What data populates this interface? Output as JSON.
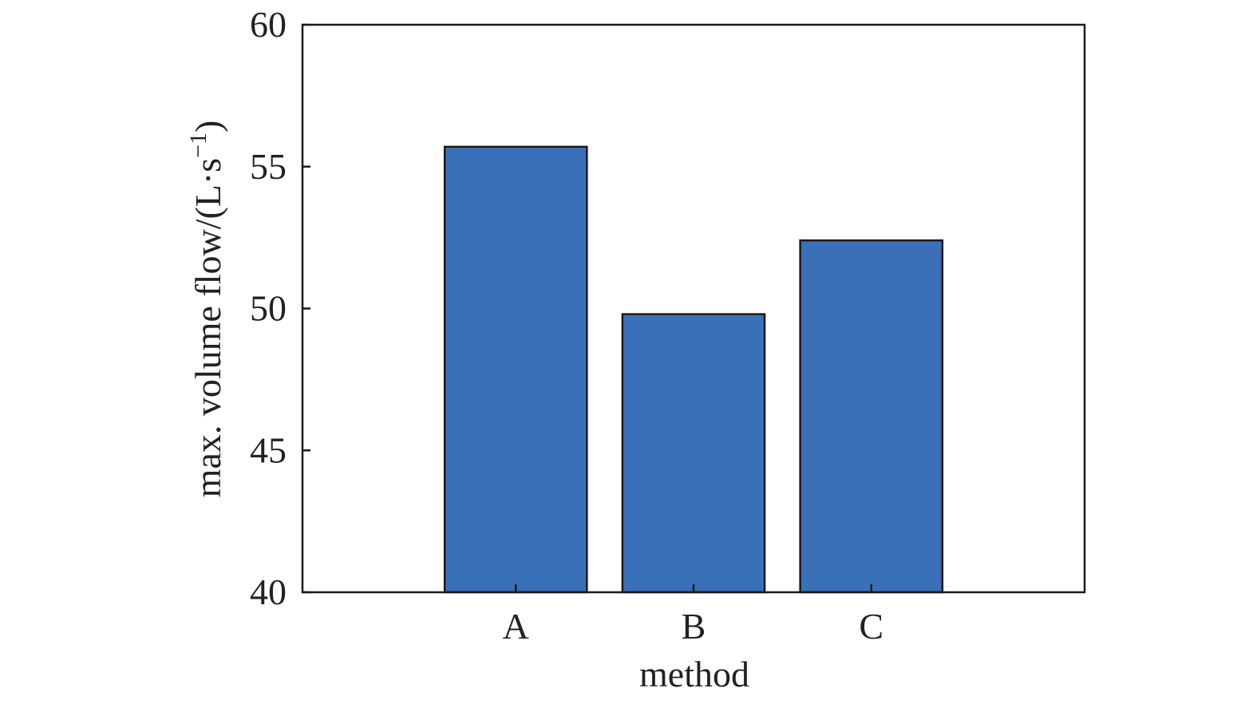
{
  "chart_data": {
    "type": "bar",
    "categories": [
      "A",
      "B",
      "C"
    ],
    "values": [
      55.7,
      49.8,
      52.4
    ],
    "title": "",
    "xlabel": "method",
    "ylabel_main": "max. volume flow/(L·s",
    "ylabel_sup": "−1",
    "ylabel_close": ")",
    "ylim": [
      40,
      60
    ],
    "yticks": [
      40,
      45,
      50,
      55,
      60
    ],
    "xlim": [
      -0.2,
      4.2
    ],
    "grid": false,
    "legend": "none",
    "bar_color": "#3a70b8",
    "edge_color": "#1a1a1a"
  }
}
